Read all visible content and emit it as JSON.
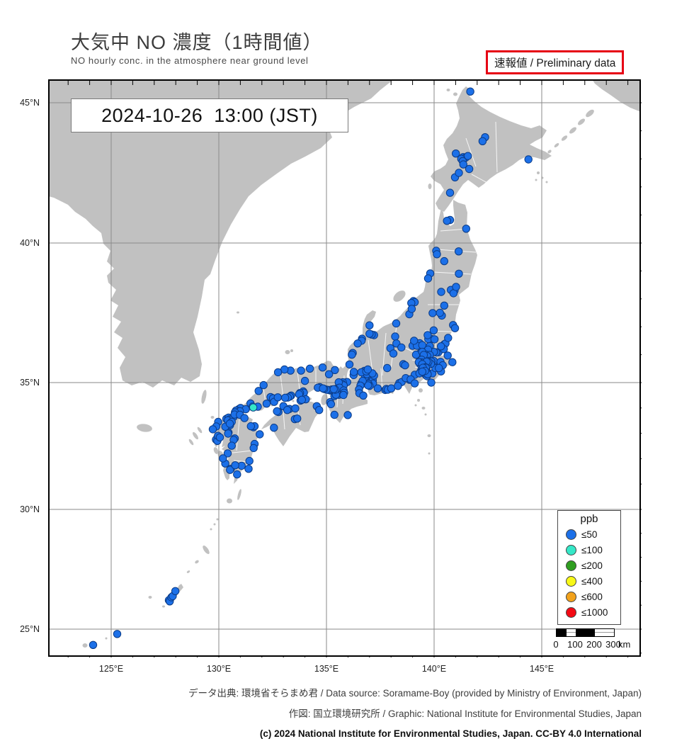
{
  "header": {
    "title": "大気中 NO 濃度（1時間値）",
    "subtitle": "NO hourly conc. in the atmosphere near ground level",
    "badge": "速報値 / Preliminary data"
  },
  "timestamp": "2024-10-26  13:00 (JST)",
  "axes": {
    "lat_ticks": [
      {
        "value": 45,
        "label": "45°N"
      },
      {
        "value": 40,
        "label": "40°N"
      },
      {
        "value": 35,
        "label": "35°N"
      },
      {
        "value": 30,
        "label": "30°N"
      },
      {
        "value": 25,
        "label": "25°N"
      }
    ],
    "lon_ticks": [
      {
        "value": 125,
        "label": "125°E"
      },
      {
        "value": 130,
        "label": "130°E"
      },
      {
        "value": 135,
        "label": "135°E"
      },
      {
        "value": 140,
        "label": "140°E"
      },
      {
        "value": 145,
        "label": "145°E"
      }
    ]
  },
  "legend": {
    "title": "ppb",
    "items": [
      {
        "label": "≤50",
        "color": "#1c70e8"
      },
      {
        "label": "≤100",
        "color": "#35e8c8"
      },
      {
        "label": "≤200",
        "color": "#2f9e20"
      },
      {
        "label": "≤400",
        "color": "#f8f818"
      },
      {
        "label": "≤600",
        "color": "#f2a21c"
      },
      {
        "label": "≤1000",
        "color": "#f30a14"
      }
    ]
  },
  "scalebar": {
    "ticks": [
      "0",
      "100",
      "200",
      "300"
    ],
    "unit": "km"
  },
  "footer": {
    "line1": "データ出典: 環境省そらまめ君 / Data source: Soramame-Boy (provided by Ministry of Environment, Japan)",
    "line2": "作図: 国立環境研究所 / Graphic: National Institute for Environmental Studies, Japan",
    "line3": "(c) 2024 National Institute for Environmental Studies, Japan. CC-BY 4.0 International"
  },
  "colors": {
    "land": "#c1c1c1",
    "sea": "#ffffff",
    "grid": "#8a8a8a",
    "frame": "#000000",
    "badge_border": "#e60014"
  },
  "stations": {
    "le50_blue": [
      [
        141.68,
        45.4
      ],
      [
        142.37,
        43.77
      ],
      [
        142.25,
        43.63
      ],
      [
        141.35,
        43.06
      ],
      [
        141.46,
        43.04
      ],
      [
        141.57,
        43.1
      ],
      [
        141.26,
        43.0
      ],
      [
        141.33,
        42.92
      ],
      [
        141.01,
        43.19
      ],
      [
        141.63,
        42.64
      ],
      [
        141.36,
        42.8
      ],
      [
        140.97,
        42.34
      ],
      [
        140.74,
        41.79
      ],
      [
        144.38,
        42.98
      ],
      [
        141.15,
        42.5
      ],
      [
        140.74,
        40.82
      ],
      [
        140.6,
        40.79
      ],
      [
        141.49,
        40.51
      ],
      [
        141.14,
        39.7
      ],
      [
        140.1,
        39.72
      ],
      [
        140.13,
        39.6
      ],
      [
        140.47,
        39.35
      ],
      [
        140.33,
        38.25
      ],
      [
        139.82,
        38.91
      ],
      [
        139.72,
        38.73
      ],
      [
        140.87,
        38.27
      ],
      [
        140.95,
        38.3
      ],
      [
        140.78,
        38.32
      ],
      [
        140.9,
        38.2
      ],
      [
        141.02,
        38.43
      ],
      [
        140.47,
        37.76
      ],
      [
        140.36,
        37.4
      ],
      [
        140.88,
        37.06
      ],
      [
        140.97,
        36.95
      ],
      [
        139.93,
        37.49
      ],
      [
        141.15,
        38.9
      ],
      [
        140.27,
        37.5
      ],
      [
        139.04,
        37.92
      ],
      [
        139.1,
        37.88
      ],
      [
        138.94,
        37.85
      ],
      [
        138.85,
        37.45
      ],
      [
        138.24,
        37.12
      ],
      [
        138.96,
        37.64
      ],
      [
        137.21,
        36.7
      ],
      [
        137.1,
        36.72
      ],
      [
        137.0,
        36.75
      ],
      [
        136.65,
        36.57
      ],
      [
        136.63,
        36.5
      ],
      [
        136.45,
        36.4
      ],
      [
        136.22,
        36.06
      ],
      [
        136.18,
        36.0
      ],
      [
        136.07,
        35.65
      ],
      [
        137.0,
        37.05
      ],
      [
        139.06,
        36.39
      ],
      [
        139.0,
        36.32
      ],
      [
        139.33,
        36.41
      ],
      [
        139.37,
        36.3
      ],
      [
        139.2,
        36.32
      ],
      [
        139.07,
        36.5
      ],
      [
        139.88,
        36.56
      ],
      [
        139.8,
        36.31
      ],
      [
        139.45,
        36.34
      ],
      [
        139.73,
        36.56
      ],
      [
        140.02,
        36.55
      ],
      [
        139.7,
        36.7
      ],
      [
        139.98,
        36.87
      ],
      [
        140.47,
        36.37
      ],
      [
        140.53,
        36.4
      ],
      [
        140.65,
        36.6
      ],
      [
        140.2,
        36.09
      ],
      [
        140.1,
        36.08
      ],
      [
        139.99,
        36.1
      ],
      [
        139.72,
        36.18
      ],
      [
        140.63,
        35.97
      ],
      [
        140.45,
        36.2
      ],
      [
        140.32,
        36.3
      ],
      [
        139.65,
        35.86
      ],
      [
        139.59,
        35.91
      ],
      [
        139.49,
        35.89
      ],
      [
        139.4,
        35.98
      ],
      [
        139.62,
        36.0
      ],
      [
        139.74,
        35.91
      ],
      [
        139.8,
        35.99
      ],
      [
        139.55,
        35.8
      ],
      [
        139.35,
        36.05
      ],
      [
        139.32,
        35.92
      ],
      [
        139.16,
        36.0
      ],
      [
        139.45,
        36.1
      ],
      [
        139.68,
        35.95
      ],
      [
        139.52,
        35.99
      ],
      [
        139.42,
        35.82
      ],
      [
        140.12,
        35.61
      ],
      [
        140.1,
        35.69
      ],
      [
        139.92,
        35.7
      ],
      [
        139.98,
        35.78
      ],
      [
        140.3,
        35.74
      ],
      [
        140.4,
        35.62
      ],
      [
        140.85,
        35.73
      ],
      [
        140.32,
        35.4
      ],
      [
        139.92,
        35.33
      ],
      [
        140.06,
        35.52
      ],
      [
        140.22,
        35.52
      ],
      [
        139.87,
        35.0
      ],
      [
        139.77,
        35.69
      ],
      [
        139.7,
        35.66
      ],
      [
        139.63,
        35.71
      ],
      [
        139.55,
        35.7
      ],
      [
        139.47,
        35.71
      ],
      [
        139.4,
        35.72
      ],
      [
        139.32,
        35.7
      ],
      [
        139.78,
        35.78
      ],
      [
        139.87,
        35.76
      ],
      [
        139.85,
        35.67
      ],
      [
        139.68,
        35.58
      ],
      [
        139.5,
        35.6
      ],
      [
        139.58,
        35.64
      ],
      [
        139.36,
        35.66
      ],
      [
        139.29,
        35.73
      ],
      [
        139.73,
        35.74
      ],
      [
        139.65,
        35.75
      ],
      [
        139.45,
        35.66
      ],
      [
        139.6,
        35.55
      ],
      [
        139.64,
        35.44
      ],
      [
        139.62,
        35.53
      ],
      [
        139.67,
        35.36
      ],
      [
        139.55,
        35.33
      ],
      [
        139.4,
        35.44
      ],
      [
        139.35,
        35.36
      ],
      [
        139.62,
        35.27
      ],
      [
        139.67,
        35.23
      ],
      [
        139.1,
        35.28
      ],
      [
        139.32,
        35.33
      ],
      [
        139.48,
        35.53
      ],
      [
        139.7,
        35.3
      ],
      [
        139.58,
        35.42
      ],
      [
        139.45,
        35.39
      ],
      [
        138.57,
        35.66
      ],
      [
        138.65,
        35.62
      ],
      [
        138.19,
        36.65
      ],
      [
        138.25,
        36.4
      ],
      [
        137.97,
        36.23
      ],
      [
        138.11,
        36.04
      ],
      [
        137.82,
        35.52
      ],
      [
        138.48,
        36.26
      ],
      [
        138.38,
        34.98
      ],
      [
        138.49,
        35.02
      ],
      [
        138.86,
        35.1
      ],
      [
        138.68,
        35.16
      ],
      [
        138.91,
        35.12
      ],
      [
        137.73,
        34.71
      ],
      [
        137.78,
        34.75
      ],
      [
        137.85,
        34.72
      ],
      [
        138.01,
        34.77
      ],
      [
        139.1,
        34.97
      ],
      [
        138.32,
        34.87
      ],
      [
        136.91,
        35.18
      ],
      [
        136.97,
        35.15
      ],
      [
        136.85,
        35.12
      ],
      [
        136.93,
        35.08
      ],
      [
        137.05,
        35.11
      ],
      [
        136.98,
        35.22
      ],
      [
        136.8,
        35.2
      ],
      [
        137.15,
        35.08
      ],
      [
        137.16,
        34.96
      ],
      [
        136.95,
        34.95
      ],
      [
        137.38,
        34.77
      ],
      [
        137.0,
        34.87
      ],
      [
        136.88,
        35.3
      ],
      [
        137.21,
        35.25
      ],
      [
        136.93,
        34.89
      ],
      [
        136.76,
        35.42
      ],
      [
        136.62,
        35.37
      ],
      [
        137.13,
        35.33
      ],
      [
        136.85,
        35.4
      ],
      [
        136.92,
        35.47
      ],
      [
        136.62,
        34.97
      ],
      [
        136.68,
        35.06
      ],
      [
        136.58,
        34.88
      ],
      [
        136.51,
        34.73
      ],
      [
        136.53,
        34.58
      ],
      [
        136.71,
        34.49
      ],
      [
        135.87,
        35.0
      ],
      [
        135.96,
        35.02
      ],
      [
        136.26,
        35.27
      ],
      [
        136.27,
        35.38
      ],
      [
        135.76,
        35.01
      ],
      [
        135.72,
        34.95
      ],
      [
        135.8,
        34.89
      ],
      [
        135.57,
        35.01
      ],
      [
        135.39,
        35.45
      ],
      [
        135.12,
        35.3
      ],
      [
        135.5,
        34.69
      ],
      [
        135.54,
        34.64
      ],
      [
        135.46,
        34.62
      ],
      [
        135.43,
        34.57
      ],
      [
        135.57,
        34.58
      ],
      [
        135.6,
        34.65
      ],
      [
        135.62,
        34.73
      ],
      [
        135.55,
        34.77
      ],
      [
        135.47,
        34.76
      ],
      [
        135.52,
        34.72
      ],
      [
        135.58,
        34.52
      ],
      [
        135.65,
        34.58
      ],
      [
        135.68,
        34.68
      ],
      [
        135.37,
        34.47
      ],
      [
        135.44,
        34.52
      ],
      [
        135.61,
        34.8
      ],
      [
        135.18,
        34.69
      ],
      [
        135.1,
        34.71
      ],
      [
        135.25,
        34.73
      ],
      [
        135.0,
        34.72
      ],
      [
        134.89,
        34.75
      ],
      [
        134.69,
        34.82
      ],
      [
        134.6,
        34.8
      ],
      [
        135.41,
        34.72
      ],
      [
        135.34,
        34.74
      ],
      [
        134.84,
        34.77
      ],
      [
        134.82,
        35.54
      ],
      [
        135.8,
        34.69
      ],
      [
        135.82,
        34.6
      ],
      [
        135.79,
        34.51
      ],
      [
        135.17,
        34.23
      ],
      [
        135.21,
        34.15
      ],
      [
        135.37,
        33.73
      ],
      [
        135.99,
        33.72
      ],
      [
        133.92,
        34.65
      ],
      [
        133.95,
        34.6
      ],
      [
        133.77,
        34.59
      ],
      [
        133.73,
        34.54
      ],
      [
        134.0,
        35.06
      ],
      [
        132.46,
        34.4
      ],
      [
        132.4,
        34.43
      ],
      [
        132.52,
        34.38
      ],
      [
        132.57,
        34.24
      ],
      [
        132.74,
        34.42
      ],
      [
        133.36,
        34.49
      ],
      [
        133.3,
        34.45
      ],
      [
        133.2,
        34.41
      ],
      [
        133.08,
        34.4
      ],
      [
        130.94,
        33.96
      ],
      [
        131.01,
        34.0
      ],
      [
        131.25,
        33.95
      ],
      [
        131.47,
        34.18
      ],
      [
        131.57,
        34.05
      ],
      [
        131.81,
        34.05
      ],
      [
        132.22,
        34.17
      ],
      [
        134.23,
        35.5
      ],
      [
        133.33,
        35.43
      ],
      [
        133.82,
        35.43
      ],
      [
        133.05,
        35.47
      ],
      [
        132.75,
        35.37
      ],
      [
        132.08,
        34.9
      ],
      [
        131.85,
        34.67
      ],
      [
        134.04,
        34.34
      ],
      [
        133.8,
        34.29
      ],
      [
        133.86,
        34.32
      ],
      [
        134.55,
        34.07
      ],
      [
        134.66,
        33.92
      ],
      [
        132.77,
        33.84
      ],
      [
        132.7,
        33.87
      ],
      [
        133.0,
        34.07
      ],
      [
        133.28,
        33.96
      ],
      [
        133.18,
        33.92
      ],
      [
        133.53,
        33.56
      ],
      [
        133.64,
        33.58
      ],
      [
        133.55,
        33.98
      ],
      [
        132.56,
        33.22
      ],
      [
        130.87,
        33.88
      ],
      [
        130.8,
        33.9
      ],
      [
        130.92,
        33.85
      ],
      [
        130.98,
        33.87
      ],
      [
        130.75,
        33.83
      ],
      [
        130.4,
        33.59
      ],
      [
        130.35,
        33.57
      ],
      [
        130.45,
        33.62
      ],
      [
        130.5,
        33.55
      ],
      [
        130.42,
        33.51
      ],
      [
        130.52,
        33.32
      ],
      [
        130.45,
        33.03
      ],
      [
        130.69,
        33.65
      ],
      [
        130.73,
        33.74
      ],
      [
        130.98,
        33.73
      ],
      [
        130.6,
        33.45
      ],
      [
        130.3,
        33.26
      ],
      [
        129.97,
        33.45
      ],
      [
        130.51,
        33.38
      ],
      [
        129.88,
        33.27
      ],
      [
        129.87,
        32.75
      ],
      [
        129.93,
        32.7
      ],
      [
        129.72,
        33.16
      ],
      [
        129.96,
        32.9
      ],
      [
        130.05,
        32.84
      ],
      [
        130.74,
        32.8
      ],
      [
        130.69,
        32.74
      ],
      [
        130.6,
        32.51
      ],
      [
        130.43,
        32.99
      ],
      [
        130.41,
        32.21
      ],
      [
        131.61,
        33.24
      ],
      [
        131.66,
        33.28
      ],
      [
        131.49,
        33.28
      ],
      [
        131.19,
        33.6
      ],
      [
        131.9,
        32.96
      ],
      [
        131.42,
        31.91
      ],
      [
        131.06,
        31.72
      ],
      [
        131.66,
        32.58
      ],
      [
        131.62,
        32.42
      ],
      [
        131.38,
        31.6
      ],
      [
        130.56,
        31.6
      ],
      [
        130.52,
        31.56
      ],
      [
        130.76,
        31.74
      ],
      [
        130.85,
        31.38
      ],
      [
        130.3,
        31.81
      ],
      [
        130.19,
        32.01
      ],
      [
        127.68,
        26.21
      ],
      [
        127.72,
        26.16
      ],
      [
        127.8,
        26.33
      ],
      [
        127.86,
        26.38
      ],
      [
        127.98,
        26.59
      ],
      [
        125.28,
        24.8
      ],
      [
        124.16,
        24.34
      ]
    ],
    "le100_cyan": [
      [
        131.6,
        34.02
      ]
    ]
  }
}
